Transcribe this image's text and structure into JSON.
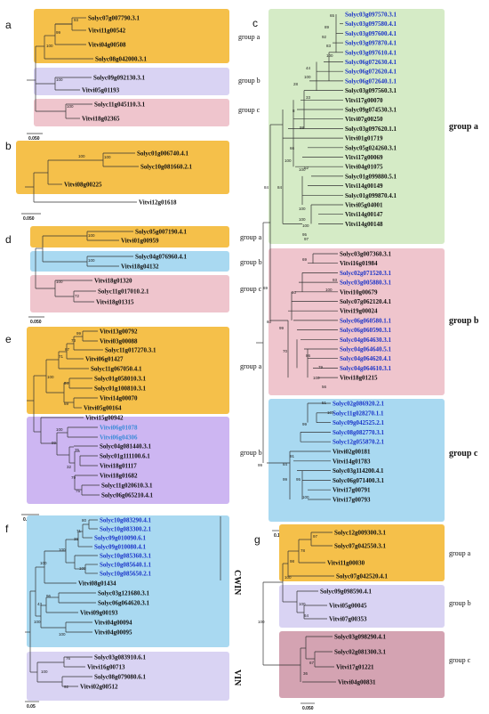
{
  "colors": {
    "orange": "#f5c04a",
    "lavender": "#d9d3f3",
    "pink": "#efc5cd",
    "blue": "#a9d9f1",
    "green": "#d5ebc6",
    "purple2": "#cdb6f2",
    "mauve": "#d4a3b2"
  },
  "panels": {
    "a": "a",
    "b": "b",
    "c": "c",
    "d": "d",
    "e": "e",
    "f": "f",
    "g": "g"
  },
  "group_labels": {
    "a_ga": "group a",
    "a_gb": "group b",
    "a_gc": "group c",
    "c_ga": "group a",
    "c_gb": "group b",
    "c_gc": "group c",
    "d_ga": "group a",
    "d_gb": "group b",
    "d_gc": "group c",
    "e_ga": "group a",
    "e_gb": "group b",
    "f_cwin": "CWIN",
    "f_vin": "VIN",
    "g_ga": "group a",
    "g_gb": "group b",
    "g_gc": "group c"
  },
  "scales": {
    "a": "0.050",
    "b": "0.050",
    "d": "0.050",
    "e": "0.050",
    "f": "0.05",
    "g_top": "0.10",
    "g_bot": "0.050"
  },
  "trees": {
    "a": {
      "leaves": [
        "Solyc07g007790.3.1",
        "Vitvi11g00542",
        "Vitvi04g00508",
        "Solyc08g042000.3.1",
        "Solyc09g092130.3.1",
        "Vitvi05g01193",
        "Solyc11g045110.3.1",
        "Vitvi18g02365"
      ],
      "boot": [
        "93",
        "99",
        "100",
        "100",
        "100"
      ]
    },
    "b": {
      "leaves": [
        "Solyc01g006740.4.1",
        "Solyc10g081660.2.1",
        "Vitvi08g00225",
        "Vitvi12g01618"
      ],
      "boot": [
        "100",
        "100"
      ]
    },
    "c": {
      "leaves": [
        "Solyc03g097570.3.1",
        "Solyc03g097580.4.1",
        "Solyc03g097600.4.1",
        "Solyc03g097870.4.1",
        "Solyc03g097610.4.1",
        "Solyc06g072630.4.1",
        "Solyc06g072620.4.1",
        "Solyc06g072640.1.1",
        "Solyc03g097560.3.1",
        "Vitvi17g00070",
        "Solyc09g074530.3.1",
        "Vitvi07g00250",
        "Solyc03g097620.1.1",
        "Vitvi01g01719",
        "Solyc05g024260.3.1",
        "Vitvi17g00069",
        "Vitvi04g01075",
        "Solyc01g099880.5.1",
        "Vitvi14g00149",
        "Solyc01g099870.4.1",
        "Vitvi05g04001",
        "Vitvi14g00147",
        "Vitvi14g00148",
        "Solyc03g007360.3.1",
        "Vitvi16g01984",
        "Solyc02g071520.3.1",
        "Solyc03g005880.3.1",
        "Vitvi10g00679",
        "Solyc07g062120.4.1",
        "Vitvi19g00024",
        "Solyc06g060580.1.1",
        "Solyc06g060590.3.1",
        "Solyc04g064630.3.1",
        "Solyc04g064640.5.1",
        "Solyc04g064620.4.1",
        "Solyc04g064610.3.1",
        "Vitvi18g01215",
        "Solyc02g086920.2.1",
        "Solyc11g028270.1.1",
        "Solyc09g042525.2.1",
        "Solyc08g082770.3.1",
        "Solyc12g055870.2.1",
        "Vitvi02g00181",
        "Vitvi14g01783",
        "Solyc03g114200.4.1",
        "Solyc06g071400.3.1",
        "Vitvi17g00791",
        "Vitvi17g00793"
      ],
      "blue": [
        0,
        1,
        2,
        3,
        4,
        5,
        6,
        7,
        25,
        26,
        30,
        31,
        32,
        33,
        34,
        35,
        37,
        38,
        39,
        40,
        41
      ],
      "boot": [
        "65",
        "89",
        "92",
        "83",
        "100",
        "44",
        "28",
        "100",
        "33",
        "8",
        "98",
        "66",
        "100",
        "52",
        "100",
        "84",
        "100",
        "97",
        "95",
        "100",
        "100",
        "69",
        "93",
        "100",
        "60",
        "99",
        "70",
        "86",
        "79",
        "56",
        "100",
        "51",
        "100",
        "99",
        "91",
        "84",
        "99",
        "95",
        "100"
      ]
    },
    "d": {
      "leaves": [
        "Solyc05g007190.4.1",
        "Vitvi01g00959",
        "Solyc04g076960.4.1",
        "Vitvi18g04132",
        "Vitvi18g01320",
        "Solyc11g017010.2.1",
        "Vitvi18g01315"
      ],
      "boot": [
        "100",
        "100",
        "100",
        "72"
      ]
    },
    "e": {
      "leaves": [
        "Vitvi13g00792",
        "Vitvi03g00088",
        "Solyc11g017270.3.1",
        "Vitvi06g01427",
        "Solyc11g067050.4.1",
        "Solyc01g058010.3.1",
        "Solyc01g100810.3.1",
        "Vitvi14g00070",
        "Vitvi05g00164",
        "Vitvi15g00942",
        "Vitvi06g01078",
        "Vitvi06g04306",
        "Solyc04g081440.3.1",
        "Solyc01g111100.6.1",
        "Vitvi18g01117",
        "Vitvi18g01682",
        "Solyc11g020610.3.1",
        "Solyc06g065210.4.1"
      ],
      "light": [
        10,
        11
      ],
      "boot": [
        "99",
        "73",
        "87",
        "71",
        "100",
        "94",
        "69",
        "100",
        "100",
        "99",
        "75",
        "49",
        "32",
        "79",
        "75"
      ]
    },
    "f": {
      "leaves": [
        "Solyc10g083290.4.1",
        "Solyc10g083300.2.1",
        "Solyc09g010090.6.1",
        "Solyc09g010080.4.1",
        "Solyc10g085360.3.1",
        "Solyc10g085640.1.1",
        "Solyc10g085650.2.1",
        "Vitvi08g01434",
        "Solyc03g121680.3.1",
        "Solyc06g064620.3.1",
        "Vitvi09g00193",
        "Vitvi04g00094",
        "Vitvi04g00095",
        "Solyc03g083910.6.1",
        "Vitvi16g00713",
        "Solyc08g079080.6.1",
        "Vitvi02g00512"
      ],
      "blue": [
        0,
        1,
        2,
        3,
        4,
        5,
        6
      ],
      "boot": [
        "80",
        "71",
        "36",
        "100",
        "100",
        "100",
        "98",
        "100",
        "96",
        "43",
        "100",
        "100",
        "76",
        "100",
        "92"
      ]
    },
    "g": {
      "leaves": [
        "Solyc12g009300.3.1",
        "Solyc07g042550.3.1",
        "Vitvi11g00030",
        "Solyc07g042520.4.1",
        "Solyc09g098590.4.1",
        "Vitvi05g00045",
        "Vitvi07g00353",
        "Solyc03g098290.4.1",
        "Solyc02g081300.3.1",
        "Vitvi17g01221",
        "Vitvi04g00831"
      ],
      "boot": [
        "97",
        "78",
        "98",
        "100",
        "64",
        "100",
        "100",
        "67",
        "36"
      ]
    }
  }
}
